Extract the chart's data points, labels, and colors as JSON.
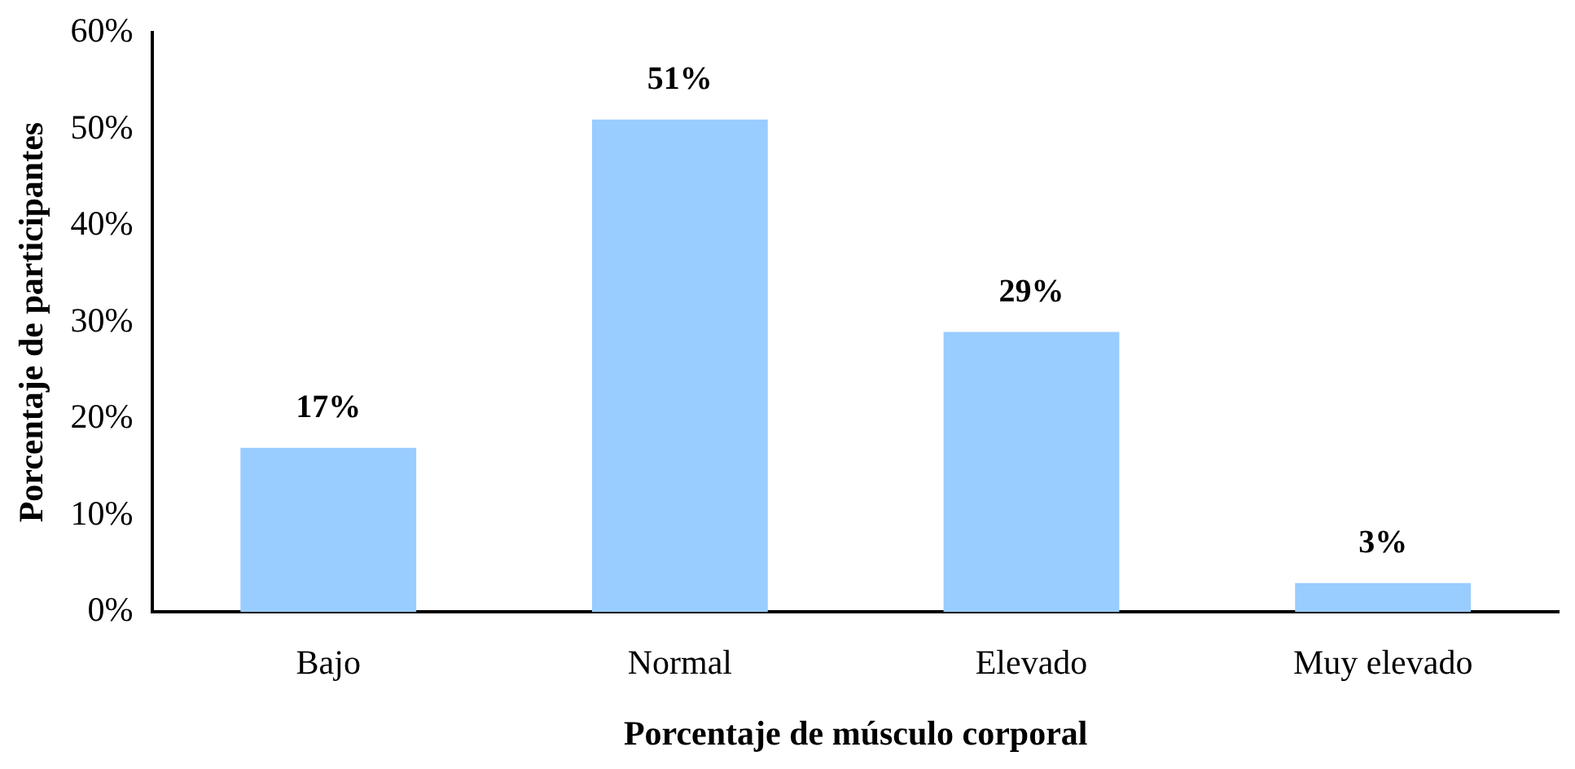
{
  "chart_data": {
    "type": "bar",
    "xlabel": "Porcentaje de músculo corporal",
    "ylabel": "Porcentaje de participantes",
    "categories": [
      "Bajo",
      "Normal",
      "Elevado",
      "Muy elevado"
    ],
    "values": [
      17,
      51,
      29,
      3
    ],
    "value_labels": [
      "17%",
      "51%",
      "29%",
      "3%"
    ],
    "color": "#99ccff",
    "ylim": [
      0,
      60
    ],
    "yticks": [
      {
        "value": 0,
        "label": "0%"
      },
      {
        "value": 10,
        "label": "10%"
      },
      {
        "value": 20,
        "label": "20%"
      },
      {
        "value": 30,
        "label": "30%"
      },
      {
        "value": 40,
        "label": "40%"
      },
      {
        "value": 50,
        "label": "50%"
      },
      {
        "value": 60,
        "label": "60%"
      }
    ],
    "grid": false,
    "legend": false
  }
}
